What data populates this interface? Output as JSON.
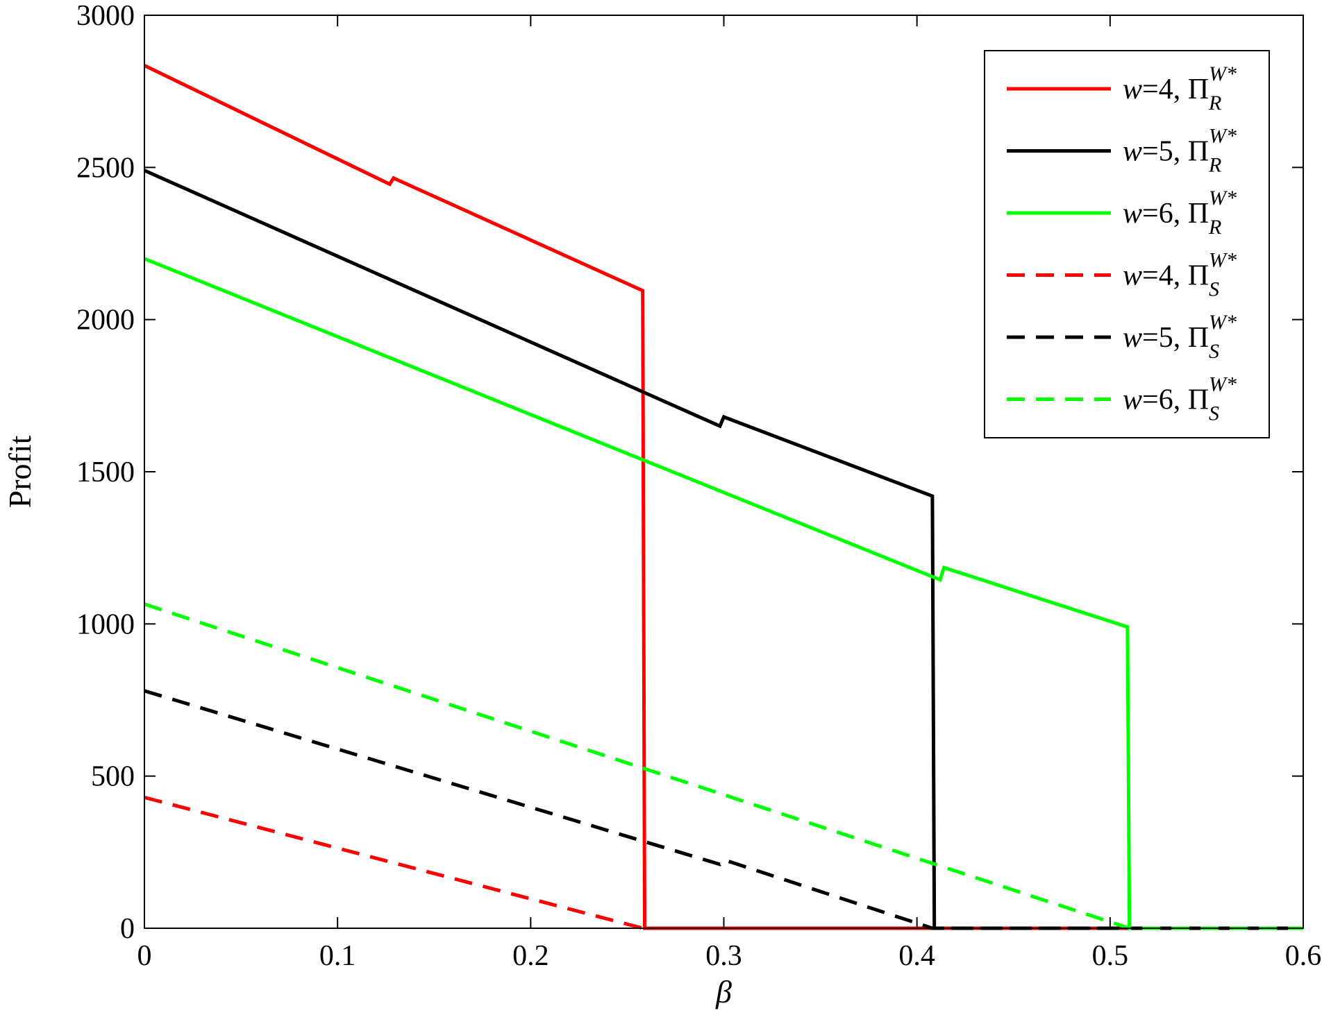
{
  "chart_data": {
    "type": "line",
    "xlabel": "β",
    "ylabel": "Profit",
    "xlim": [
      0,
      0.6
    ],
    "ylim": [
      0,
      3000
    ],
    "x_ticks": [
      "0",
      "0.1",
      "0.2",
      "0.3",
      "0.4",
      "0.5",
      "0.6"
    ],
    "y_ticks": [
      "0",
      "500",
      "1000",
      "1500",
      "2000",
      "2500",
      "3000"
    ],
    "grid": false,
    "legend_position": "top-right",
    "series": [
      {
        "name": "w=4, Π_R^{W*}",
        "label": {
          "w": "4",
          "sub": "R",
          "sup": "W*"
        },
        "color": "#ff0000",
        "style": "solid",
        "points": [
          [
            0,
            2835
          ],
          [
            0.127,
            2445
          ],
          [
            0.129,
            2465
          ],
          [
            0.258,
            2095
          ],
          [
            0.259,
            0
          ],
          [
            0.6,
            0
          ]
        ]
      },
      {
        "name": "w=5, Π_R^{W*}",
        "label": {
          "w": "5",
          "sub": "R",
          "sup": "W*"
        },
        "color": "#000000",
        "style": "solid",
        "points": [
          [
            0,
            2490
          ],
          [
            0.298,
            1650
          ],
          [
            0.3,
            1680
          ],
          [
            0.408,
            1420
          ],
          [
            0.409,
            0
          ],
          [
            0.6,
            0
          ]
        ]
      },
      {
        "name": "w=6, Π_R^{W*}",
        "label": {
          "w": "6",
          "sub": "R",
          "sup": "W*"
        },
        "color": "#00ff00",
        "style": "solid",
        "points": [
          [
            0,
            2200
          ],
          [
            0.412,
            1145
          ],
          [
            0.414,
            1185
          ],
          [
            0.509,
            990
          ],
          [
            0.51,
            0
          ],
          [
            0.6,
            0
          ]
        ]
      },
      {
        "name": "w=4, Π_S^{W*}",
        "label": {
          "w": "4",
          "sub": "S",
          "sup": "W*"
        },
        "color": "#ff0000",
        "style": "dashed",
        "points": [
          [
            0,
            430
          ],
          [
            0.258,
            0
          ],
          [
            0.6,
            0
          ]
        ]
      },
      {
        "name": "w=5, Π_S^{W*}",
        "label": {
          "w": "5",
          "sub": "S",
          "sup": "W*"
        },
        "color": "#000000",
        "style": "dashed",
        "points": [
          [
            0,
            780
          ],
          [
            0.298,
            210
          ],
          [
            0.3,
            225
          ],
          [
            0.408,
            0
          ],
          [
            0.6,
            0
          ]
        ]
      },
      {
        "name": "w=6, Π_S^{W*}",
        "label": {
          "w": "6",
          "sub": "S",
          "sup": "W*"
        },
        "color": "#00ff00",
        "style": "dashed",
        "points": [
          [
            0,
            1065
          ],
          [
            0.51,
            0
          ],
          [
            0.6,
            0
          ]
        ]
      }
    ]
  }
}
